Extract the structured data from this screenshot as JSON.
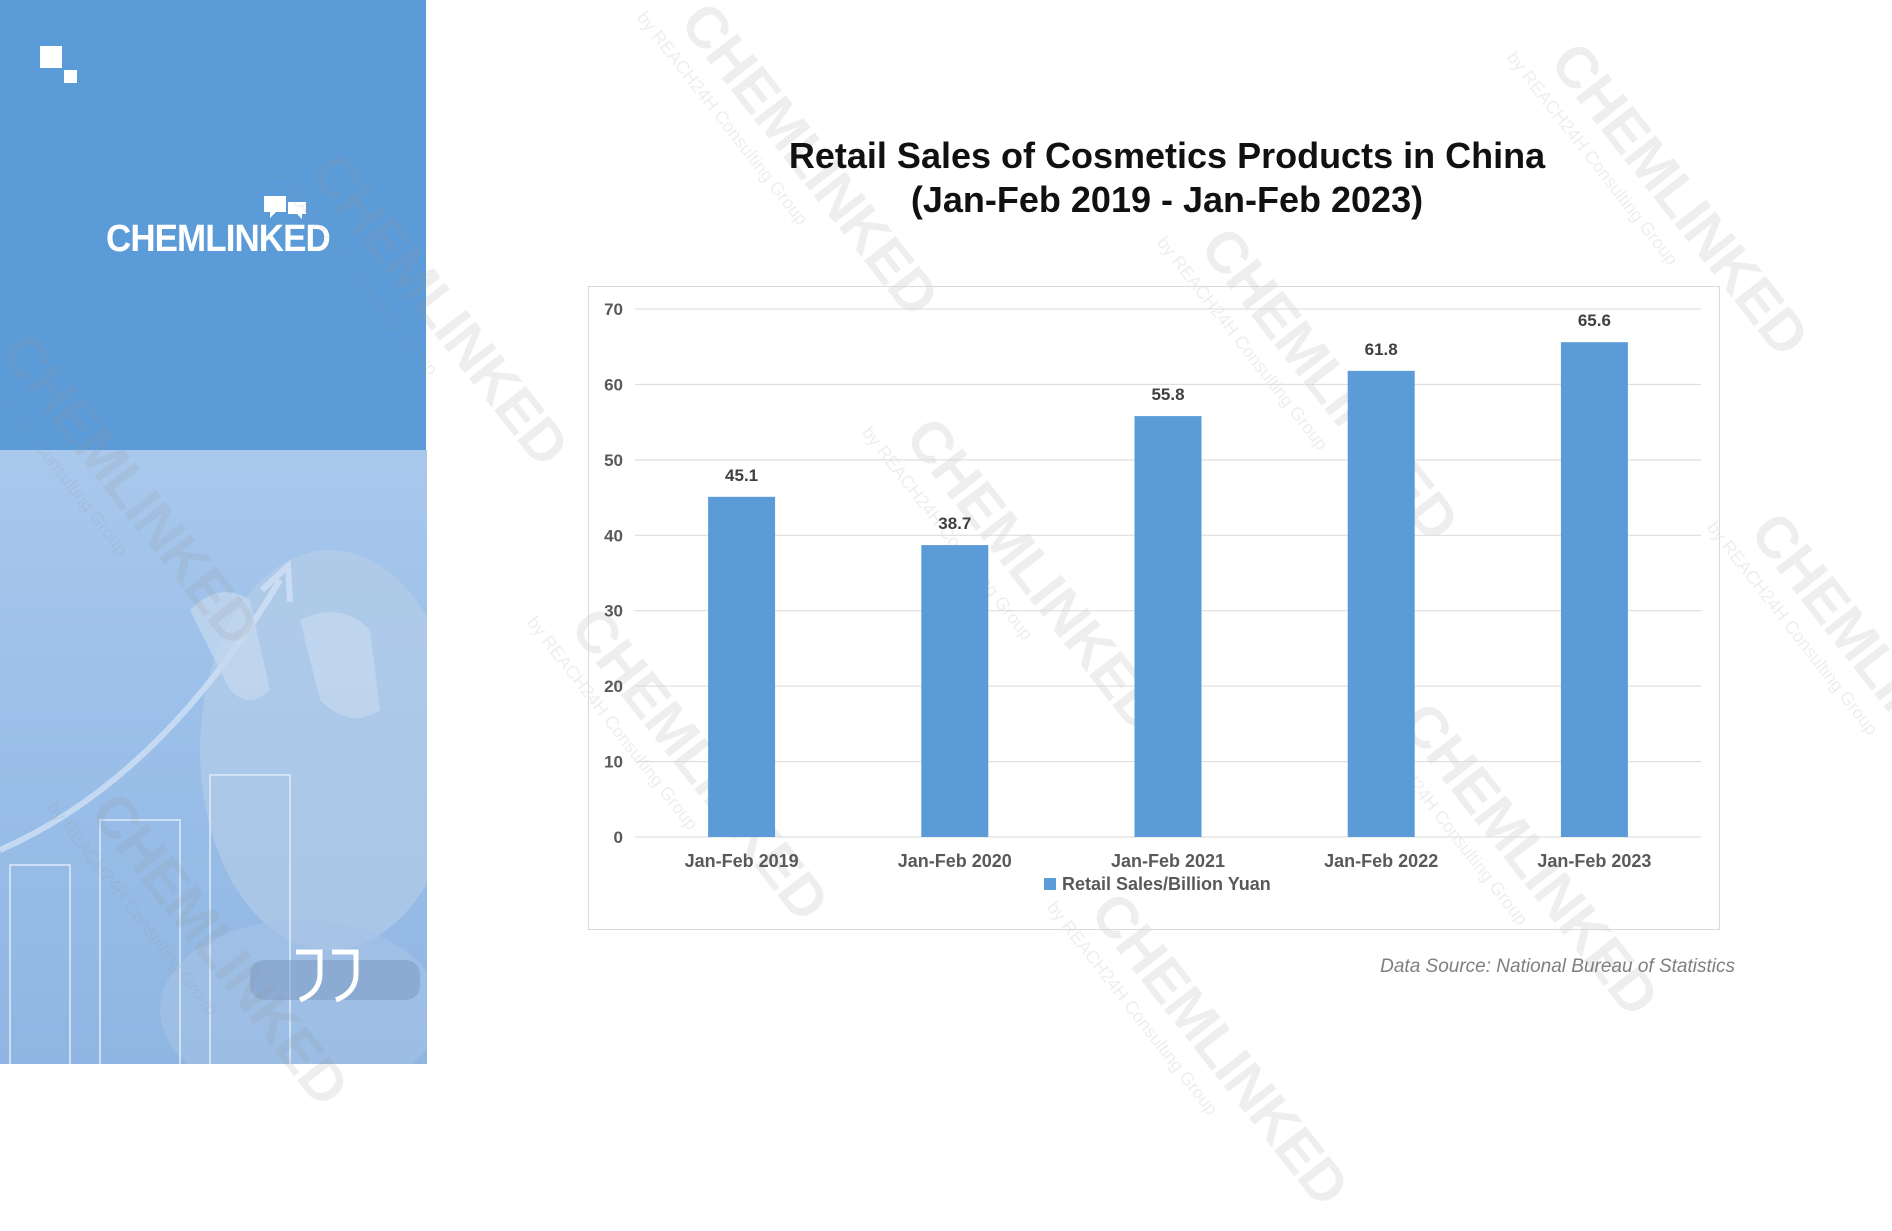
{
  "brand": {
    "name": "CHEMLINKED"
  },
  "watermark": {
    "name": "CHEMLINKED",
    "sub": "by REACH24H Consulting Group"
  },
  "icons": {
    "corner": "squares-logo-icon",
    "quote": "quote-icon",
    "bubbles": "chat-bubbles-icon"
  },
  "colors": {
    "panel": "#5b9bd8",
    "bar": "#5b9bd8",
    "title": "#111111"
  },
  "chart_data": {
    "type": "bar",
    "title_line1": "Retail Sales of Cosmetics Products in China",
    "title_line2": "(Jan-Feb 2019 - Jan-Feb 2023)",
    "categories": [
      "Jan-Feb 2019",
      "Jan-Feb 2020",
      "Jan-Feb 2021",
      "Jan-Feb 2022",
      "Jan-Feb 2023"
    ],
    "series": [
      {
        "name": "Retail Sales/Billion Yuan",
        "values": [
          45.1,
          38.7,
          55.8,
          61.8,
          65.6
        ],
        "color": "#5b9bd8"
      }
    ],
    "ylim": [
      0,
      70
    ],
    "yticks": [
      0,
      10,
      20,
      30,
      40,
      50,
      60,
      70
    ],
    "grid": true,
    "legend": "bottom",
    "data_labels": true
  },
  "source": "Data Source: National Bureau of Statistics"
}
